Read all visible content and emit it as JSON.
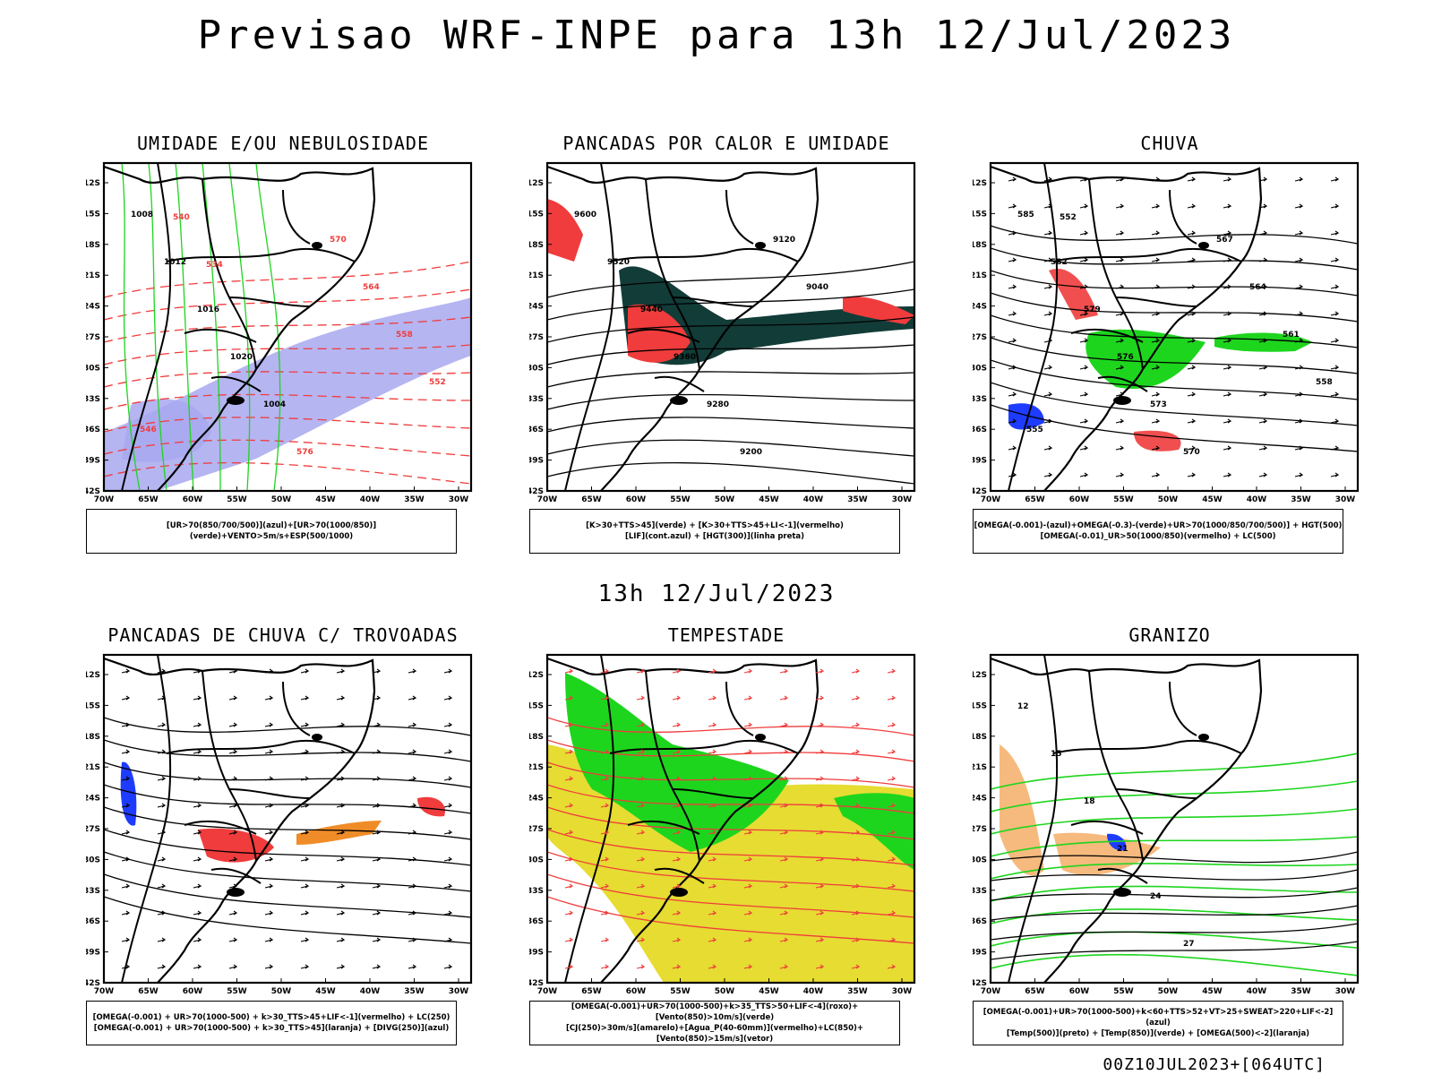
{
  "title": "Previsao WRF-INPE  para 13h 12/Jul/2023",
  "subtitle": "13h 12/Jul/2023",
  "footer": "00Z10JUL2023+[064UTC]",
  "axes": {
    "lat_ticks": [
      "12S",
      "15S",
      "18S",
      "21S",
      "24S",
      "27S",
      "30S",
      "33S",
      "36S",
      "39S",
      "42S"
    ],
    "lon_ticks": [
      "70W",
      "65W",
      "60W",
      "55W",
      "50W",
      "45W",
      "40W",
      "35W",
      "30W"
    ]
  },
  "colors": {
    "humidity_blue": "#a8a8f0",
    "green": "#1ed51e",
    "red": "#f03c3c",
    "dark_teal": "#123c38",
    "blue": "#1e3cff",
    "orange": "#f08c28",
    "yellow": "#e6dc32"
  },
  "panels": [
    {
      "title": "UMIDADE E/OU NEBULOSIDADE",
      "legend": [
        "[UR>70(850/700/500)](azul)+[UR>70(1000/850)](verde)+VENTO>5m/s+ESP(500/1000)"
      ],
      "labels": [
        "1008",
        "1012",
        "1016",
        "1020",
        "1004",
        "576",
        "570",
        "564",
        "558",
        "552",
        "546",
        "540",
        "534"
      ]
    },
    {
      "title": "PANCADAS POR CALOR E UMIDADE",
      "legend": [
        "[K>30+TTS>45](verde) + [K>30+TTS>45+LI<-1](vermelho)",
        "[LIF](cont.azul) + [HGT(300)](linha preta)"
      ],
      "labels": [
        "9600",
        "9520",
        "9440",
        "9360",
        "9280",
        "9200",
        "9120",
        "9040"
      ]
    },
    {
      "title": "CHUVA",
      "legend": [
        "[OMEGA(-0.001)-(azul)+OMEGA(-0.3)-(verde)+UR>70(1000/850/700/500)] + HGT(500)",
        "[OMEGA(-0.01)_UR>50(1000/850)(vermelho) + LC(500)"
      ],
      "labels": [
        "585",
        "582",
        "579",
        "576",
        "573",
        "570",
        "567",
        "564",
        "561",
        "558",
        "555",
        "552"
      ]
    },
    {
      "title": "PANCADAS DE CHUVA C/ TROVOADAS",
      "legend": [
        "[OMEGA(-0.001) + UR>70(1000-500) + k>30_TTS>45+LIF<-1](vermelho) + LC(250)",
        "[OMEGA(-0.001) + UR>70(1000-500) + k>30_TTS>45](laranja) + [DIVG(250)](azul)"
      ],
      "labels": []
    },
    {
      "title": "TEMPESTADE",
      "legend": [
        "[OMEGA(-0.001)+UR>70(1000-500)+k>35_TTS>50+LIF<-4](roxo)+[Vento(850)>10m/s](verde)",
        "[CJ(250)>30m/s](amarelo)+[Agua_P(40-60mm)](vermelho)+LC(850)+[Vento(850)>15m/s](vetor)"
      ],
      "labels": []
    },
    {
      "title": "GRANIZO",
      "legend": [
        "[OMEGA(-0.001)+UR>70(1000-500)+k<60+TTS>52+VT>25+SWEAT>220+LIF<-2](azul)",
        "[Temp(500)](preto) + [Temp(850)](verde) + [OMEGA(500)<-2](laranja)"
      ],
      "labels": [
        "12",
        "15",
        "18",
        "21",
        "24",
        "27"
      ]
    }
  ]
}
